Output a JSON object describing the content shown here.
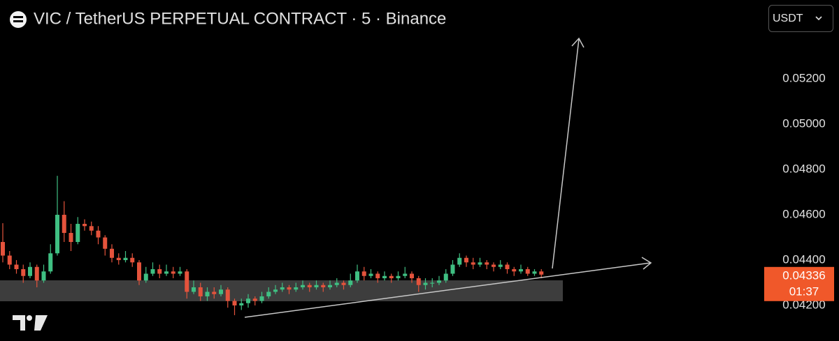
{
  "chart_data": {
    "type": "candlestick",
    "title": "VIC / TetherUS PERPETUAL CONTRACT · 5 · Binance",
    "currency": "USDT",
    "last_price": 0.04336,
    "countdown": "01:37",
    "up_color": "#3fbf82",
    "down_color": "#e4533c",
    "last_price_color": "#f0582a",
    "ylim": [
      0.04043,
      0.05548
    ],
    "yticks": [
      {
        "value": 0.042,
        "label": "0.04200"
      },
      {
        "value": 0.044,
        "label": "0.04400"
      },
      {
        "value": 0.046,
        "label": "0.04600"
      },
      {
        "value": 0.048,
        "label": "0.04800"
      },
      {
        "value": 0.05,
        "label": "0.05000"
      },
      {
        "value": 0.052,
        "label": "0.05200"
      }
    ],
    "open": [
      0.0448,
      0.0442,
      0.0438,
      0.0436,
      0.0433,
      0.0437,
      0.0431,
      0.0435,
      0.0443,
      0.046,
      0.0452,
      0.0448,
      0.0456,
      0.0455,
      0.0453,
      0.045,
      0.0445,
      0.0441,
      0.044,
      0.0441,
      0.0439,
      0.0431,
      0.0434,
      0.0436,
      0.0434,
      0.0435,
      0.0434,
      0.0435,
      0.0426,
      0.0428,
      0.0424,
      0.0426,
      0.0425,
      0.0427,
      0.0422,
      0.042,
      0.0421,
      0.0423,
      0.0422,
      0.0424,
      0.0426,
      0.0427,
      0.0428,
      0.0427,
      0.0428,
      0.0429,
      0.0428,
      0.0429,
      0.0428,
      0.0429,
      0.043,
      0.0429,
      0.0431,
      0.0435,
      0.0433,
      0.0434,
      0.0432,
      0.0433,
      0.0432,
      0.0433,
      0.0434,
      0.0432,
      0.0429,
      0.043,
      0.043,
      0.0431,
      0.0434,
      0.0438,
      0.0441,
      0.0439,
      0.0438,
      0.0439,
      0.0438,
      0.0437,
      0.0438,
      0.0436,
      0.0435,
      0.0436,
      0.0434,
      0.0435
    ],
    "high": [
      0.04563,
      0.0444,
      0.044,
      0.0438,
      0.0439,
      0.0438,
      0.0438,
      0.0447,
      0.04772,
      0.0466,
      0.0456,
      0.0459,
      0.0458,
      0.0457,
      0.0455,
      0.0451,
      0.0447,
      0.0443,
      0.0444,
      0.0443,
      0.044,
      0.0437,
      0.0439,
      0.0438,
      0.0438,
      0.0437,
      0.0437,
      0.0436,
      0.0431,
      0.043,
      0.0428,
      0.0428,
      0.0429,
      0.0428,
      0.0423,
      0.0423,
      0.0425,
      0.0424,
      0.0426,
      0.0428,
      0.0429,
      0.043,
      0.0429,
      0.043,
      0.0431,
      0.043,
      0.0431,
      0.043,
      0.0431,
      0.0432,
      0.0431,
      0.0434,
      0.0438,
      0.0437,
      0.0436,
      0.0435,
      0.0435,
      0.0434,
      0.0435,
      0.0437,
      0.0435,
      0.0433,
      0.0432,
      0.0432,
      0.0433,
      0.0436,
      0.044,
      0.0443,
      0.0442,
      0.0441,
      0.0441,
      0.044,
      0.0439,
      0.044,
      0.0439,
      0.0437,
      0.0438,
      0.0437,
      0.0436,
      0.0436
    ],
    "low": [
      0.0439,
      0.0436,
      0.0434,
      0.043,
      0.0432,
      0.0428,
      0.043,
      0.0434,
      0.0442,
      0.0448,
      0.0444,
      0.0447,
      0.0453,
      0.0451,
      0.0447,
      0.0442,
      0.0439,
      0.0438,
      0.0439,
      0.0437,
      0.0429,
      0.043,
      0.0433,
      0.0432,
      0.0433,
      0.0432,
      0.0433,
      0.0423,
      0.0425,
      0.0422,
      0.0422,
      0.0423,
      0.0424,
      0.0419,
      0.04157,
      0.0418,
      0.0419,
      0.042,
      0.0421,
      0.0423,
      0.0425,
      0.0426,
      0.0425,
      0.0426,
      0.0427,
      0.0426,
      0.0427,
      0.0426,
      0.0427,
      0.0428,
      0.0427,
      0.0428,
      0.043,
      0.0431,
      0.0432,
      0.043,
      0.0431,
      0.043,
      0.0431,
      0.0432,
      0.043,
      0.0426,
      0.0427,
      0.0428,
      0.0429,
      0.043,
      0.0433,
      0.0437,
      0.0437,
      0.0436,
      0.0437,
      0.0436,
      0.0435,
      0.0436,
      0.0434,
      0.0433,
      0.0434,
      0.0433,
      0.0433,
      0.0432
    ],
    "close": [
      0.0442,
      0.0438,
      0.0436,
      0.0433,
      0.0437,
      0.0431,
      0.0435,
      0.0443,
      0.046,
      0.0452,
      0.0448,
      0.0456,
      0.0455,
      0.0453,
      0.045,
      0.0445,
      0.0441,
      0.044,
      0.0441,
      0.0439,
      0.0431,
      0.0434,
      0.0436,
      0.0434,
      0.0435,
      0.0434,
      0.0435,
      0.0426,
      0.0428,
      0.0424,
      0.0426,
      0.0425,
      0.0427,
      0.0422,
      0.042,
      0.0421,
      0.0423,
      0.0422,
      0.0424,
      0.0426,
      0.0427,
      0.0428,
      0.0427,
      0.0428,
      0.0429,
      0.0428,
      0.0429,
      0.0428,
      0.0429,
      0.043,
      0.0429,
      0.0431,
      0.0435,
      0.0433,
      0.0434,
      0.0432,
      0.0433,
      0.0432,
      0.0433,
      0.0434,
      0.0432,
      0.0429,
      0.043,
      0.043,
      0.0431,
      0.0434,
      0.0438,
      0.0441,
      0.0439,
      0.0438,
      0.0439,
      0.0438,
      0.0437,
      0.0438,
      0.0436,
      0.0435,
      0.0436,
      0.0434,
      0.0435,
      0.04336
    ]
  }
}
